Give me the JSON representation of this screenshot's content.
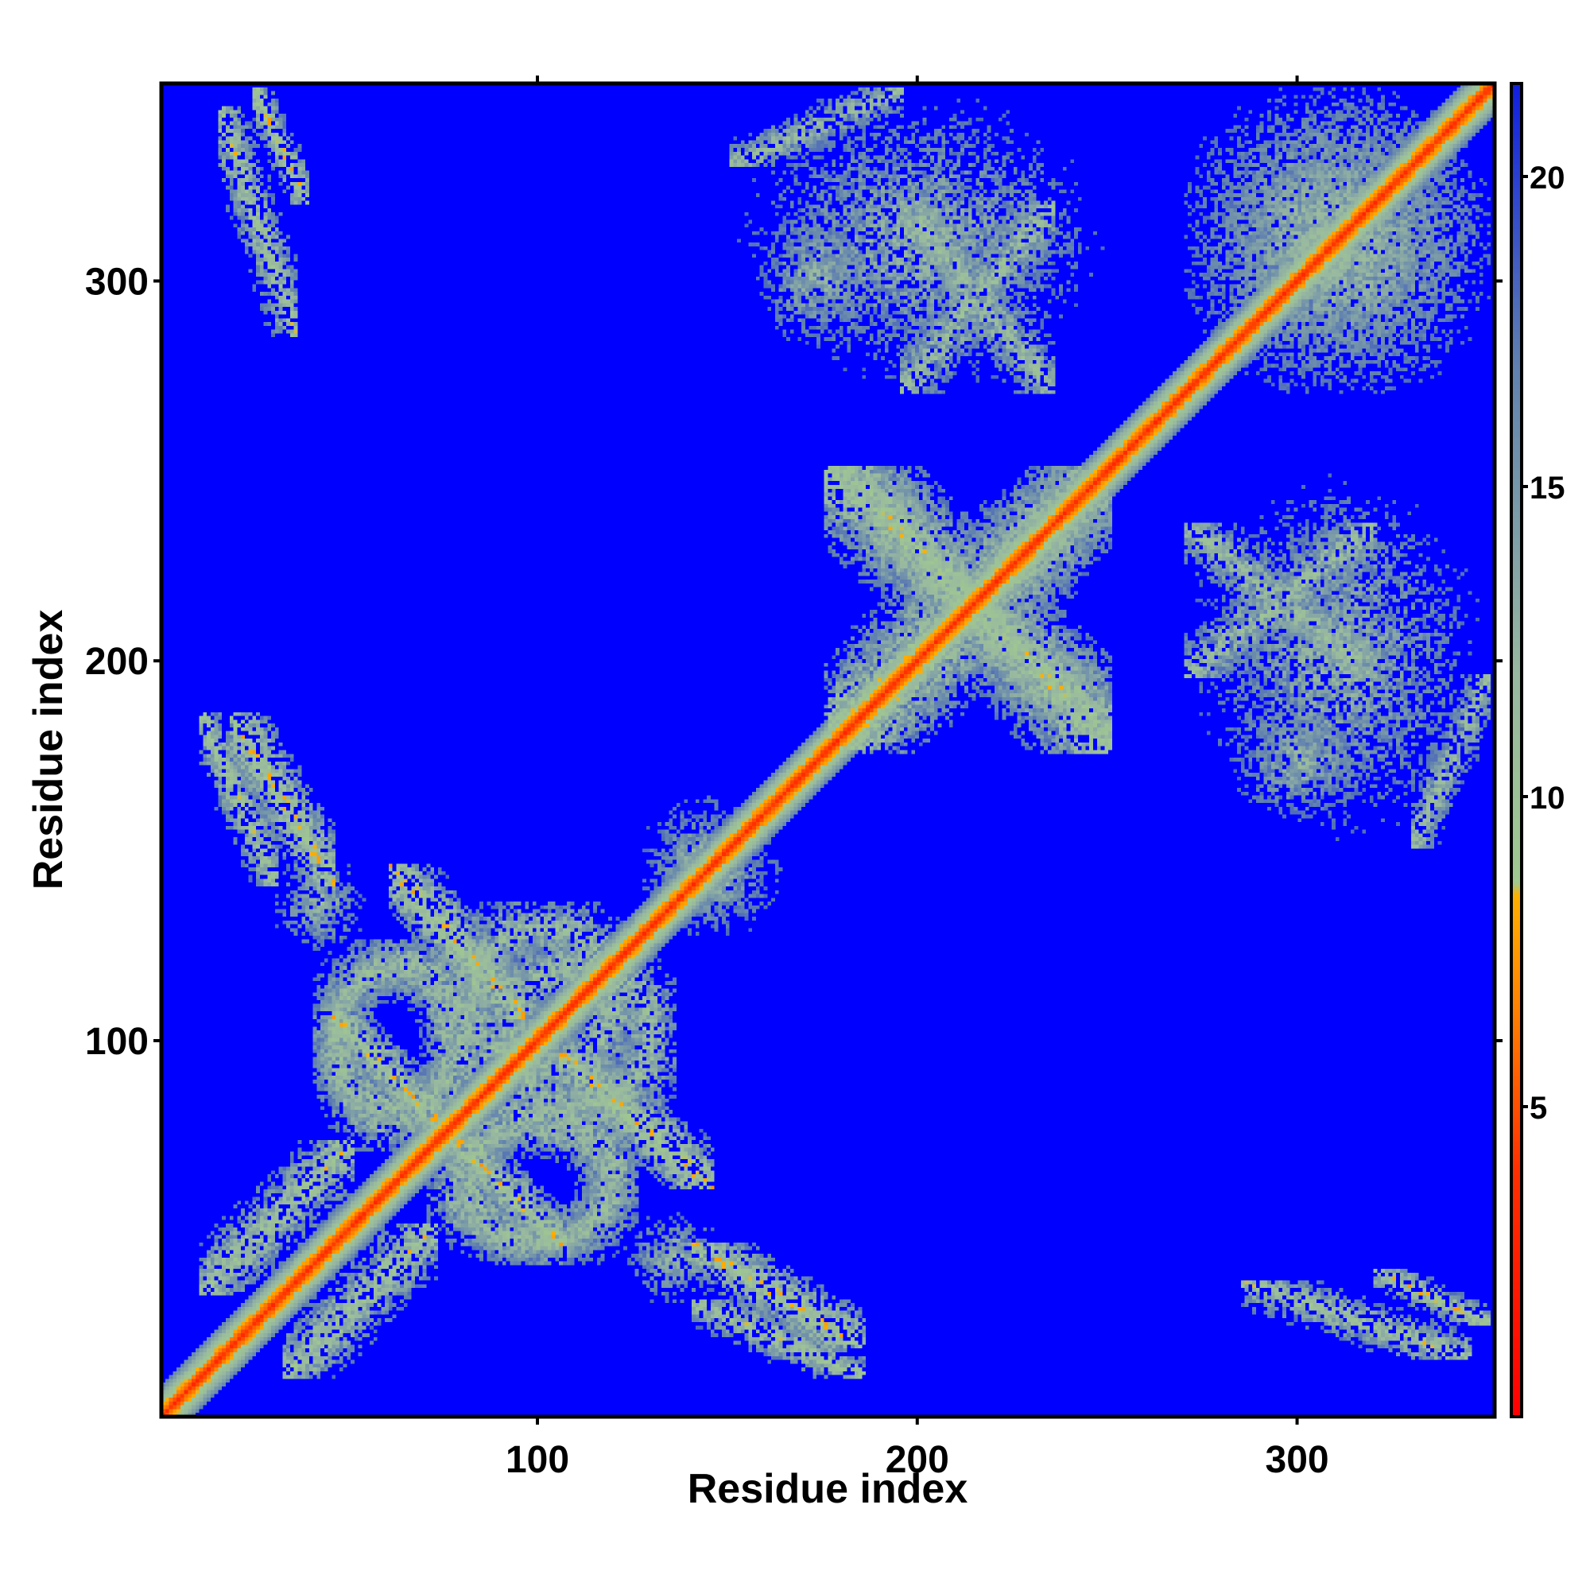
{
  "chart_data": {
    "type": "heatmap",
    "title": "",
    "xlabel": "Residue index",
    "ylabel": "Residue index",
    "xlim": [
      1,
      352
    ],
    "ylim": [
      1,
      352
    ],
    "x_ticks": [
      100,
      200,
      300
    ],
    "y_ticks": [
      100,
      200,
      300
    ],
    "x_tick_labels": [
      "100",
      "200",
      "300"
    ],
    "y_tick_labels": [
      "100",
      "200",
      "300"
    ],
    "colorbar": {
      "range": [
        0,
        21.5
      ],
      "ticks": [
        5,
        10,
        15,
        20
      ],
      "tick_labels": [
        "5",
        "10",
        "15",
        "20"
      ],
      "stops": [
        {
          "value": 0,
          "color": "#ff0000"
        },
        {
          "value": 4,
          "color": "#ff3000"
        },
        {
          "value": 6.5,
          "color": "#ff8000"
        },
        {
          "value": 8.4,
          "color": "#ffb000"
        },
        {
          "value": 8.6,
          "color": "#a0c890"
        },
        {
          "value": 12,
          "color": "#98b8a0"
        },
        {
          "value": 17,
          "color": "#6080b0"
        },
        {
          "value": 21.5,
          "color": "#1020e0"
        }
      ]
    },
    "background_value": 21.5,
    "background_color": "#0000ff",
    "diagonal_value": 3,
    "contact_features": [
      {
        "x": [
          18,
          45
        ],
        "y": [
          140,
          185
        ],
        "kind": "antidiagonal",
        "value": 7
      },
      {
        "x": [
          32,
          72
        ],
        "y": [
          10,
          50
        ],
        "kind": "parallel",
        "value": 8
      },
      {
        "x": [
          75,
          105
        ],
        "y": [
          45,
          75
        ],
        "kind": "antidiagonal",
        "value": 7
      },
      {
        "x": [
          105,
          145
        ],
        "y": [
          60,
          95
        ],
        "kind": "antidiagonal",
        "value": 7
      },
      {
        "x": [
          40,
          85
        ],
        "y": [
          75,
          125
        ],
        "kind": "ring",
        "value": 9
      },
      {
        "x": [
          85,
          135
        ],
        "y": [
          75,
          125
        ],
        "kind": "ring",
        "value": 9
      },
      {
        "x": [
          70,
          125
        ],
        "y": [
          40,
          80
        ],
        "kind": "ring",
        "value": 10
      },
      {
        "x": [
          125,
          160
        ],
        "y": [
          125,
          165
        ],
        "kind": "blob",
        "value": 10
      },
      {
        "x": [
          28,
          55
        ],
        "y": [
          120,
          150
        ],
        "kind": "blob",
        "value": 10
      },
      {
        "x": [
          140,
          185
        ],
        "y": [
          10,
          30
        ],
        "kind": "antidiagonal",
        "value": 8
      },
      {
        "x": [
          175,
          250
        ],
        "y": [
          180,
          250
        ],
        "kind": "star",
        "value": 8
      },
      {
        "x": [
          24,
          38
        ],
        "y": [
          320,
          350
        ],
        "kind": "antidiagonal",
        "value": 7
      },
      {
        "x": [
          150,
          195
        ],
        "y": [
          330,
          350
        ],
        "kind": "parallel",
        "value": 9
      },
      {
        "x": [
          155,
          190
        ],
        "y": [
          280,
          320
        ],
        "kind": "blob",
        "value": 10
      },
      {
        "x": [
          195,
          235
        ],
        "y": [
          270,
          320
        ],
        "kind": "star",
        "value": 9
      },
      {
        "x": [
          270,
          350
        ],
        "y": [
          270,
          350
        ],
        "kind": "blob",
        "value": 9
      },
      {
        "x": [
          270,
          350
        ],
        "y": [
          150,
          250
        ],
        "kind": "blob",
        "value": 10
      },
      {
        "x": [
          285,
          345
        ],
        "y": [
          15,
          35
        ],
        "kind": "antidiagonal",
        "value": 8
      }
    ]
  }
}
